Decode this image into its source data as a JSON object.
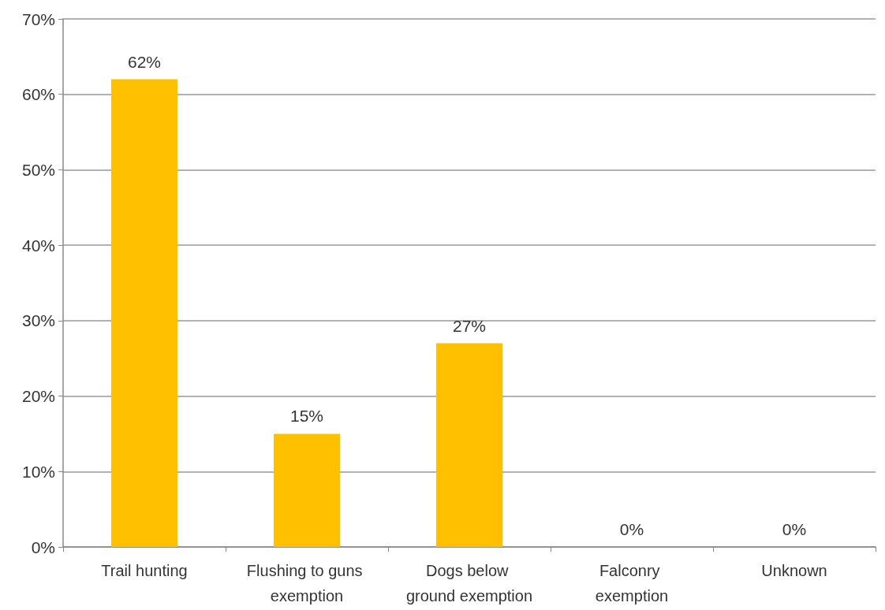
{
  "chart_data": {
    "type": "bar",
    "categories": [
      "Trail hunting",
      "Flushing to guns exemption",
      "Dogs below ground exemption",
      "Falconry exemption",
      "Unknown"
    ],
    "values": [
      62,
      15,
      27,
      0,
      0
    ],
    "value_labels": [
      "62%",
      "15%",
      "27%",
      "0%",
      "0%"
    ],
    "color": "#ffc000",
    "ylim": [
      0,
      70
    ],
    "yticks": [
      {
        "value": 0,
        "label": "0%"
      },
      {
        "value": 10,
        "label": "10%"
      },
      {
        "value": 20,
        "label": "20%"
      },
      {
        "value": 30,
        "label": "30%"
      },
      {
        "value": 40,
        "label": "40%"
      },
      {
        "value": 50,
        "label": "50%"
      },
      {
        "value": 60,
        "label": "60%"
      },
      {
        "value": 70,
        "label": "70%"
      }
    ],
    "grid": "y"
  }
}
